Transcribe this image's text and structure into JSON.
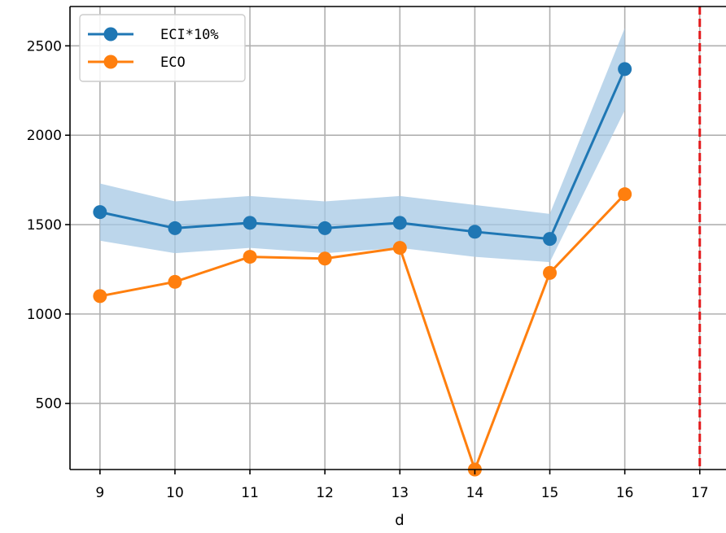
{
  "chart_data": {
    "type": "line",
    "title": "",
    "xlabel": "d",
    "ylabel": "",
    "x": [
      9,
      10,
      11,
      12,
      13,
      14,
      15,
      16
    ],
    "xlim": [
      8.6,
      17.35
    ],
    "ylim": [
      130,
      2720
    ],
    "xticks": [
      9,
      10,
      11,
      12,
      13,
      14,
      15,
      16,
      17
    ],
    "yticks": [
      500,
      1000,
      1500,
      2000,
      2500
    ],
    "grid": true,
    "legend_position": "top-left",
    "series": [
      {
        "name": "ECI*10%",
        "color": "#1f77b4",
        "values": [
          1570,
          1480,
          1510,
          1480,
          1510,
          1460,
          1420,
          2370
        ],
        "band_upper": [
          1730,
          1630,
          1660,
          1630,
          1660,
          1610,
          1560,
          2600
        ],
        "band_lower": [
          1410,
          1340,
          1370,
          1340,
          1370,
          1320,
          1290,
          2140
        ],
        "band_color": "#a6c8e4"
      },
      {
        "name": "ECO",
        "color": "#ff7f0e",
        "values": [
          1100,
          1180,
          1320,
          1310,
          1370,
          130,
          1230,
          1670
        ]
      }
    ],
    "annotations": [
      {
        "type": "vline",
        "x": 17,
        "color": "#e31a1c",
        "style": "dashed"
      }
    ]
  }
}
